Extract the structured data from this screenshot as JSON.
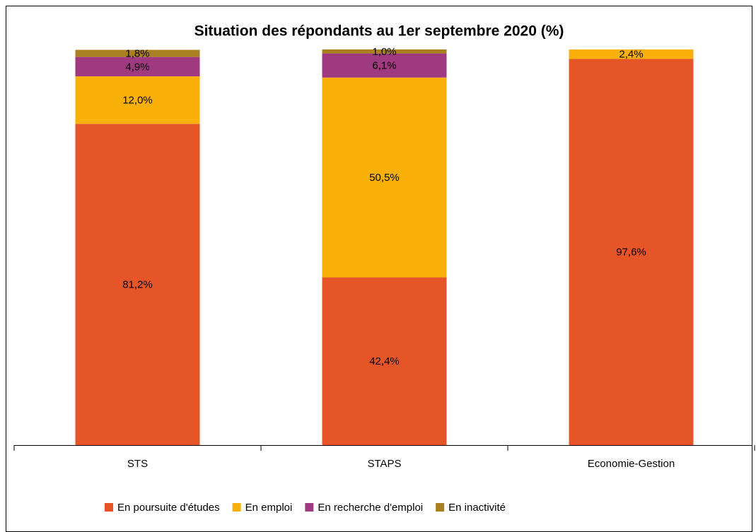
{
  "chart_data": {
    "type": "stacked_bar",
    "title": "Situation des répondants au 1er septembre 2020 (%)",
    "categories": [
      "STS",
      "STAPS",
      "Economie-Gestion"
    ],
    "series": [
      {
        "name": "En poursuite d'études",
        "color": "#e55527",
        "values": [
          81.2,
          42.4,
          97.6
        ],
        "value_labels": [
          "81,2%",
          "42,4%",
          "97,6%"
        ]
      },
      {
        "name": "En emploi",
        "color": "#f9b008",
        "values": [
          12.0,
          50.5,
          2.4
        ],
        "value_labels": [
          "12,0%",
          "50,5%",
          "2,4%"
        ]
      },
      {
        "name": "En recherche d'emploi",
        "color": "#a03a80",
        "values": [
          4.9,
          6.1,
          null
        ],
        "value_labels": [
          "4,9%",
          "6,1%",
          null
        ]
      },
      {
        "name": "En inactivité",
        "color": "#a88020",
        "values": [
          1.8,
          1.0,
          null
        ],
        "value_labels": [
          "1,8%",
          "1,0%",
          null
        ]
      }
    ],
    "ylim": [
      0,
      100
    ],
    "legend": "bottom"
  }
}
